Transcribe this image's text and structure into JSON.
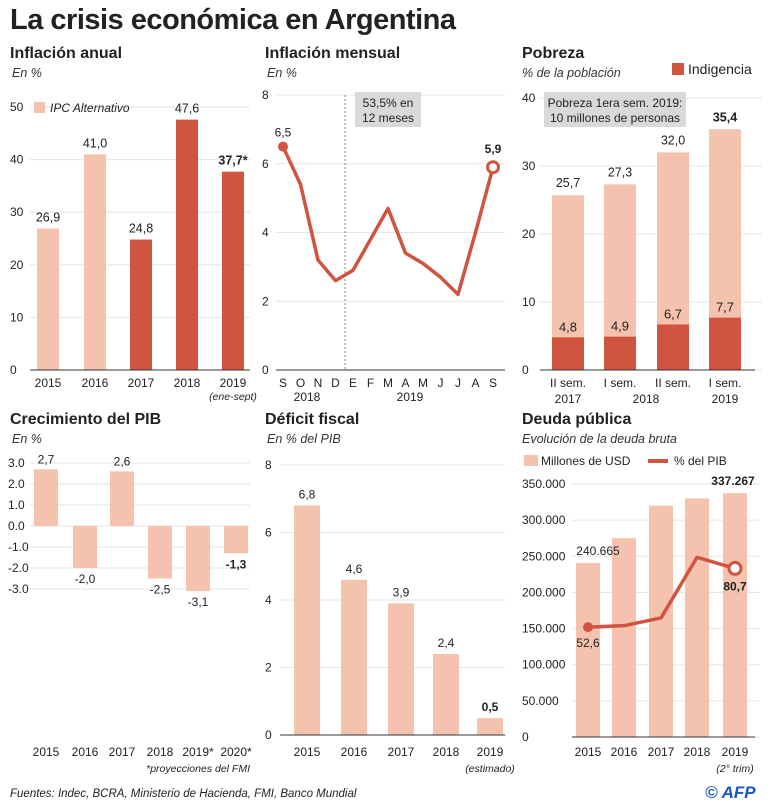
{
  "title": "La crisis económica en Argentina",
  "source": "Fuentes: Indec, BCRA, Ministerio de Hacienda, FMI, Banco Mundial",
  "logo": "© AFP",
  "colors": {
    "light": "#f5c2ae",
    "dark": "#d05440",
    "box": "#d9d9d9",
    "grid": "#e6e6e6"
  },
  "chart_data": [
    {
      "id": "inflacion-anual",
      "type": "bar",
      "title": "Inflación anual",
      "subtitle": "En %",
      "categories": [
        "2015",
        "2016",
        "2017",
        "2018",
        "2019"
      ],
      "category_notes": [
        "",
        "",
        "",
        "",
        "(ene-sept)"
      ],
      "values": [
        26.9,
        41.0,
        24.8,
        47.6,
        37.7
      ],
      "labels": [
        "26,9",
        "41,0",
        "24,8",
        "47,6",
        "37,7*"
      ],
      "styles": [
        "light",
        "light",
        "dark",
        "dark",
        "dark"
      ],
      "legend": "IPC Alternativo",
      "yticks": [
        0,
        10,
        20,
        30,
        40,
        50
      ],
      "ylim": [
        0,
        50
      ]
    },
    {
      "id": "inflacion-mensual",
      "type": "line",
      "title": "Inflación mensual",
      "subtitle": "En %",
      "categories": [
        "S",
        "O",
        "N",
        "D",
        "E",
        "F",
        "M",
        "A",
        "M",
        "J",
        "J",
        "A",
        "S"
      ],
      "years": [
        "2018",
        "2019"
      ],
      "values": [
        6.5,
        5.4,
        3.2,
        2.6,
        2.9,
        3.8,
        4.7,
        3.4,
        3.1,
        2.7,
        2.2,
        4.0,
        5.9
      ],
      "labels": {
        "first": "6,5",
        "last": "5,9"
      },
      "annotation": [
        "53,5% en",
        "12 meses"
      ],
      "yticks": [
        0,
        2,
        4,
        6,
        8
      ],
      "ylim": [
        0,
        8
      ]
    },
    {
      "id": "pobreza",
      "type": "bar",
      "title": "Pobreza",
      "subtitle": "% de la población",
      "categories": [
        "II sem.",
        "I sem.",
        "II sem.",
        "I sem."
      ],
      "years": [
        "2017",
        "2018",
        "2019"
      ],
      "series": [
        {
          "name": "Pobreza",
          "values": [
            25.7,
            27.3,
            32.0,
            35.4
          ],
          "labels": [
            "25,7",
            "27,3",
            "32,0",
            "35,4"
          ]
        },
        {
          "name": "Indigencia",
          "values": [
            4.8,
            4.9,
            6.7,
            7.7
          ],
          "labels": [
            "4,8",
            "4,9",
            "6,7",
            "7,7"
          ]
        }
      ],
      "legend": "Indigencia",
      "annotation": [
        "Pobreza 1era sem. 2019:",
        "10 millones de personas"
      ],
      "yticks": [
        0,
        10,
        20,
        30,
        40
      ],
      "ylim": [
        0,
        40
      ]
    },
    {
      "id": "pib",
      "type": "bar",
      "title": "Crecimiento del PIB",
      "subtitle": "En %",
      "categories": [
        "2015",
        "2016",
        "2017",
        "2018",
        "2019*",
        "2020*"
      ],
      "values": [
        2.7,
        -2.0,
        2.6,
        -2.5,
        -3.1,
        -1.3
      ],
      "labels": [
        "2,7",
        "-2,0",
        "2,6",
        "-2,5",
        "-3,1",
        "-1,3"
      ],
      "note": "*proyecciones del FMI",
      "yticks": [
        3.0,
        2.0,
        1.0,
        0.0,
        -1.0,
        -2.0,
        -3.0
      ],
      "ytick_labels": [
        "3.0",
        "2.0",
        "1.0",
        "0.0",
        "-1.0",
        "-2.0",
        "-3.0"
      ],
      "ylim": [
        -3.0,
        3.0
      ]
    },
    {
      "id": "deficit",
      "type": "bar",
      "title": "Déficit fiscal",
      "subtitle": "En % del PIB",
      "categories": [
        "2015",
        "2016",
        "2017",
        "2018",
        "2019"
      ],
      "category_notes": [
        "",
        "",
        "",
        "",
        "(estimado)"
      ],
      "values": [
        6.8,
        4.6,
        3.9,
        2.4,
        0.5
      ],
      "labels": [
        "6,8",
        "4,6",
        "3,9",
        "2,4",
        "0,5"
      ],
      "yticks": [
        0,
        2,
        4,
        6,
        8
      ],
      "ylim": [
        0,
        8
      ]
    },
    {
      "id": "deuda",
      "type": "bar",
      "title": "Deuda pública",
      "subtitle": "Evolución de la deuda bruta",
      "categories": [
        "2015",
        "2016",
        "2017",
        "2018",
        "2019"
      ],
      "category_notes": [
        "",
        "",
        "",
        "",
        "(2° trim)"
      ],
      "series": [
        {
          "name": "Millones de USD",
          "values": [
            240665,
            275000,
            320000,
            330000,
            337267
          ],
          "labels": [
            "240.665",
            "",
            "",
            "",
            "337.267"
          ]
        },
        {
          "name": "% del PIB",
          "values": [
            52.6,
            53.3,
            57.0,
            86.0,
            80.7
          ],
          "labels": [
            "52,6",
            "",
            "",
            "",
            "80,7"
          ]
        }
      ],
      "yticks": [
        0,
        50000,
        100000,
        150000,
        200000,
        250000,
        300000,
        350000
      ],
      "ytick_labels": [
        "0",
        "50.000",
        "100.000",
        "150.000",
        "200.000",
        "250.000",
        "300.000",
        "350.000"
      ],
      "ylim": [
        0,
        350000
      ]
    }
  ]
}
